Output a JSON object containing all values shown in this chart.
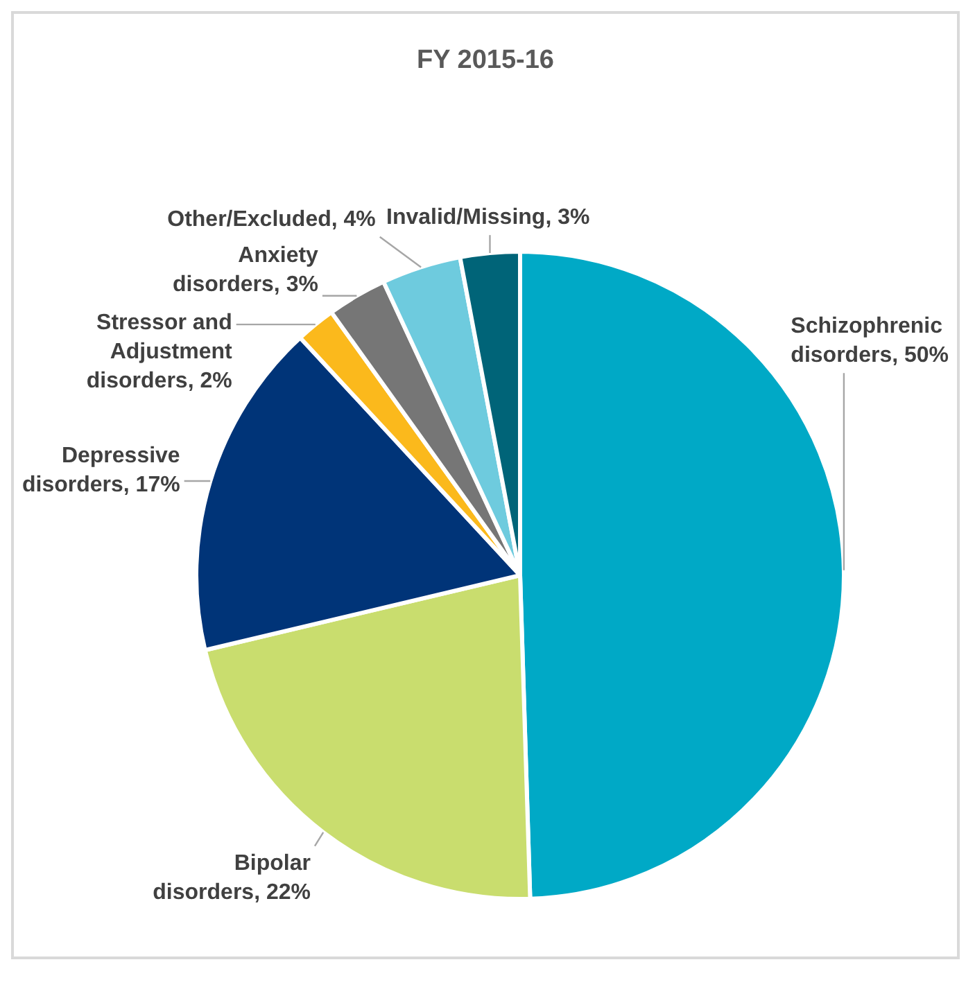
{
  "chart_data": {
    "type": "pie",
    "title": "FY 2015-16",
    "categories": [
      "Schizophrenic disorders",
      "Bipolar disorders",
      "Depressive disorders",
      "Stressor and Adjustment disorders",
      "Anxiety disorders",
      "Other/Excluded",
      "Invalid/Missing"
    ],
    "values": [
      50,
      22,
      17,
      2,
      3,
      4,
      3
    ],
    "value_labels": [
      "50%",
      "22%",
      "17%",
      "2%",
      "3%",
      "4%",
      "3%"
    ],
    "colors": [
      "#00a9c6",
      "#c9dd6e",
      "#003478",
      "#fbb91c",
      "#767676",
      "#6ecbde",
      "#006478"
    ],
    "legend": false
  }
}
